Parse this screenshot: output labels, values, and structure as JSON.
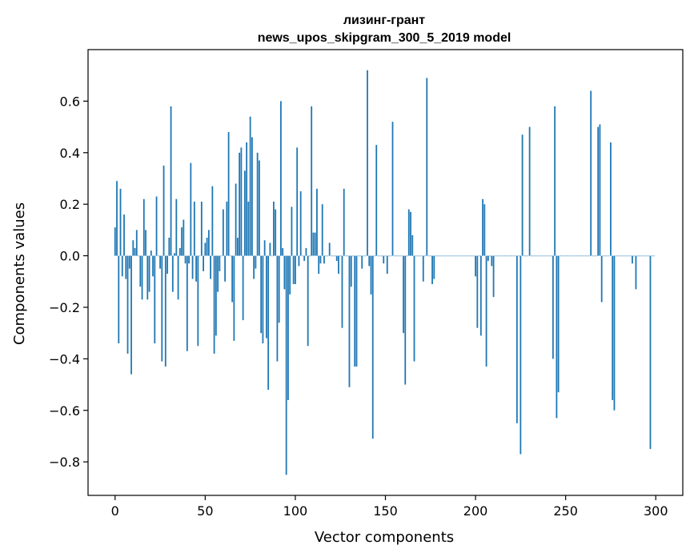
{
  "chart_data": {
    "type": "bar",
    "title_line1": "лизинг-грант",
    "title_line2": "news_upos_skipgram_300_5_2019 model",
    "xlabel": "Vector components",
    "ylabel": "Components values",
    "xlim": [
      -15,
      315
    ],
    "ylim": [
      -0.93,
      0.8
    ],
    "xticks": [
      0,
      50,
      100,
      150,
      200,
      250,
      300
    ],
    "xtick_labels": [
      "0",
      "50",
      "100",
      "150",
      "200",
      "250",
      "300"
    ],
    "yticks": [
      -0.8,
      -0.6,
      -0.4,
      -0.2,
      0.0,
      0.2,
      0.4,
      0.6
    ],
    "ytick_labels": [
      "−0.8",
      "−0.6",
      "−0.4",
      "−0.2",
      "0.0",
      "0.2",
      "0.4",
      "0.6"
    ],
    "bar_color": "#1f77b4",
    "grid": false,
    "values": [
      0.11,
      0.29,
      -0.34,
      0.26,
      -0.08,
      0.16,
      -0.09,
      -0.38,
      -0.05,
      -0.46,
      0.06,
      0.03,
      0.1,
      0.0,
      -0.12,
      -0.17,
      0.22,
      0.1,
      -0.17,
      -0.14,
      0.02,
      -0.08,
      -0.34,
      0.23,
      0.0,
      -0.05,
      -0.41,
      0.35,
      -0.43,
      -0.07,
      0.07,
      0.58,
      -0.14,
      0.01,
      0.22,
      -0.17,
      0.03,
      0.11,
      0.14,
      -0.03,
      -0.37,
      -0.03,
      0.36,
      -0.09,
      0.21,
      -0.1,
      -0.35,
      0.0,
      0.21,
      -0.06,
      0.05,
      0.07,
      0.1,
      -0.09,
      0.27,
      -0.38,
      -0.31,
      -0.14,
      -0.06,
      0.0,
      0.18,
      -0.1,
      0.21,
      0.48,
      0.0,
      -0.18,
      -0.33,
      0.28,
      0.07,
      0.4,
      0.42,
      -0.25,
      0.33,
      0.44,
      0.21,
      0.54,
      0.46,
      -0.09,
      -0.05,
      0.4,
      0.37,
      -0.3,
      -0.34,
      0.06,
      -0.32,
      -0.52,
      0.05,
      0.0,
      0.21,
      0.18,
      -0.41,
      -0.26,
      0.6,
      0.03,
      -0.13,
      -0.85,
      -0.56,
      -0.15,
      0.19,
      -0.11,
      -0.11,
      0.42,
      -0.04,
      0.25,
      0.0,
      -0.02,
      0.03,
      -0.35,
      0.0,
      0.58,
      0.09,
      0.09,
      0.26,
      -0.07,
      -0.03,
      0.2,
      -0.03,
      0.0,
      0.0,
      0.05,
      0.0,
      0.0,
      0.0,
      -0.02,
      -0.07,
      0.0,
      -0.28,
      0.26,
      0.0,
      0.0,
      -0.51,
      -0.12,
      0.0,
      -0.43,
      -0.43,
      0.0,
      0.0,
      -0.05,
      0.0,
      0.0,
      0.72,
      -0.04,
      -0.15,
      -0.71,
      0.0,
      0.43,
      0.0,
      0.0,
      0.0,
      -0.03,
      0.0,
      -0.07,
      0.0,
      0.0,
      0.52,
      0.0,
      0.0,
      0.0,
      0.0,
      0.0,
      -0.3,
      -0.5,
      0.0,
      0.18,
      0.17,
      0.08,
      -0.41,
      0.0,
      0.0,
      0.0,
      0.0,
      -0.1,
      0.0,
      0.69,
      0.0,
      0.0,
      -0.11,
      -0.09,
      0.0,
      0.0,
      0.0,
      0.0,
      0.0,
      0.0,
      0.0,
      0.0,
      0.0,
      0.0,
      0.0,
      0.0,
      0.0,
      0.0,
      0.0,
      0.0,
      0.0,
      0.0,
      0.0,
      0.0,
      0.0,
      0.0,
      -0.08,
      -0.28,
      0.0,
      -0.31,
      0.22,
      0.2,
      -0.43,
      -0.02,
      0.0,
      -0.04,
      -0.16,
      0.0,
      0.0,
      0.0,
      0.0,
      0.0,
      0.0,
      0.0,
      0.0,
      0.0,
      0.0,
      0.0,
      0.0,
      -0.65,
      0.0,
      -0.77,
      0.47,
      0.0,
      0.0,
      0.0,
      0.5,
      0.0,
      0.0,
      0.0,
      0.0,
      0.0,
      0.0,
      0.0,
      0.0,
      0.0,
      0.0,
      0.0,
      0.0,
      -0.4,
      0.58,
      -0.63,
      -0.53,
      0.0,
      0.0,
      0.0,
      0.0,
      0.0,
      0.0,
      0.0,
      0.0,
      0.0,
      0.0,
      0.0,
      0.0,
      0.0,
      0.0,
      0.0,
      0.0,
      0.0,
      0.64,
      0.0,
      0.0,
      0.0,
      0.5,
      0.51,
      -0.18,
      0.0,
      0.0,
      0.0,
      0.0,
      0.44,
      -0.56,
      -0.6,
      0.0,
      0.0,
      0.0,
      0.0,
      0.0,
      0.0,
      0.0,
      0.0,
      0.0,
      -0.03,
      0.0,
      -0.13,
      0.0,
      0.0,
      0.0,
      0.0,
      0.0,
      0.0,
      0.0,
      -0.75,
      0.0,
      0.0
    ]
  }
}
